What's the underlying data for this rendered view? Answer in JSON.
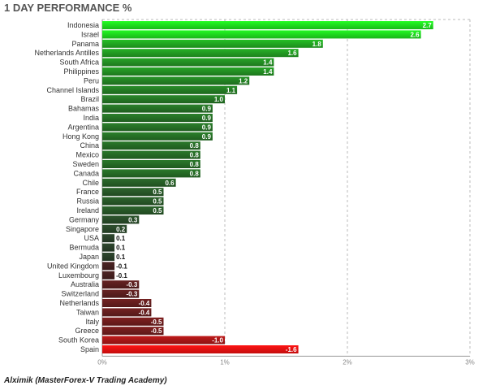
{
  "title": "1 DAY PERFORMANCE %",
  "footer": "Alximik (MasterForex-V Trading Academy)",
  "chart_data": {
    "type": "bar",
    "orientation": "horizontal",
    "title": "1 DAY PERFORMANCE %",
    "xlabel": "",
    "ylabel": "",
    "xlim": [
      0,
      3
    ],
    "x_tick_labels": [
      "0%",
      "1%",
      "2%",
      "3%"
    ],
    "grid": "vertical dashed",
    "categories": [
      "Indonesia",
      "Israel",
      "Panama",
      "Netherlands Antilles",
      "South Africa",
      "Philippines",
      "Peru",
      "Channel Islands",
      "Brazil",
      "Bahamas",
      "India",
      "Argentina",
      "Hong Kong",
      "China",
      "Mexico",
      "Sweden",
      "Canada",
      "Chile",
      "France",
      "Russia",
      "Ireland",
      "Germany",
      "Singapore",
      "USA",
      "Bermuda",
      "Japan",
      "United Kingdom",
      "Luxembourg",
      "Australia",
      "Switzerland",
      "Netherlands",
      "Taiwan",
      "Italy",
      "Greece",
      "South Korea",
      "Spain"
    ],
    "values": [
      2.7,
      2.6,
      1.8,
      1.6,
      1.4,
      1.4,
      1.2,
      1.1,
      1.0,
      0.9,
      0.9,
      0.9,
      0.9,
      0.8,
      0.8,
      0.8,
      0.8,
      0.6,
      0.5,
      0.5,
      0.5,
      0.3,
      0.2,
      0.1,
      0.1,
      0.1,
      -0.1,
      -0.1,
      -0.3,
      -0.3,
      -0.4,
      -0.4,
      -0.5,
      -0.5,
      -1.0,
      -1.6
    ],
    "value_labels": [
      "2.7",
      "2.6",
      "1.8",
      "1.6",
      "1.4",
      "1.4",
      "1.2",
      "1.1",
      "1.0",
      "0.9",
      "0.9",
      "0.9",
      "0.9",
      "0.8",
      "0.8",
      "0.8",
      "0.8",
      "0.6",
      "0.5",
      "0.5",
      "0.5",
      "0.3",
      "0.2",
      "0.1",
      "0.1",
      "0.1",
      "-0.1",
      "-0.1",
      "-0.3",
      "-0.3",
      "-0.4",
      "-0.4",
      "-0.5",
      "-0.5",
      "-1.0",
      "-1.6"
    ],
    "colors": {
      "positive_high": "#1ee31e",
      "positive_low": "#2a3a2a",
      "negative_low": "#3a2222",
      "negative_high": "#ee1111",
      "grid": "#bbbbbb",
      "axis": "#999999"
    }
  }
}
